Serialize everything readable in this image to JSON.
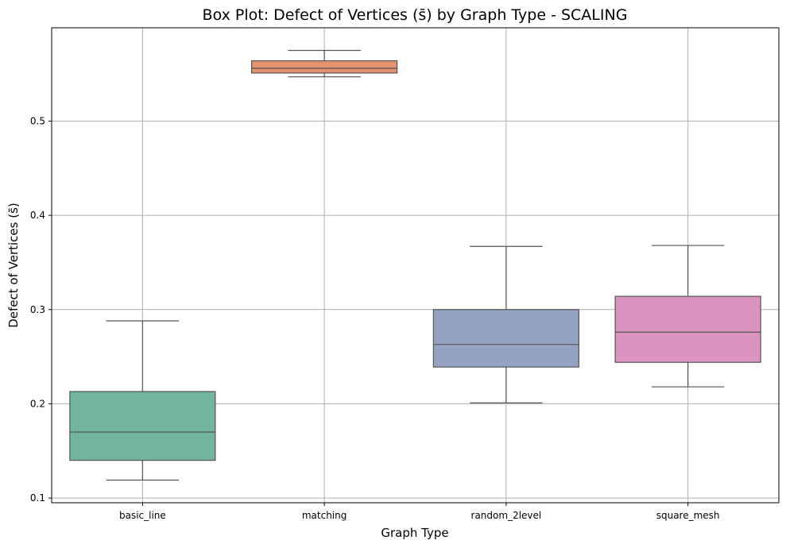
{
  "chart_data": {
    "type": "box",
    "title": "Box Plot: Defect of Vertices (s̄) by Graph Type - SCALING",
    "xlabel": "Graph Type",
    "ylabel": "Defect of Vertices (s̄)",
    "ylim": [
      0.095,
      0.599
    ],
    "yticks": [
      0.1,
      0.2,
      0.3,
      0.4,
      0.5
    ],
    "ytick_labels": [
      "0.1",
      "0.2",
      "0.3",
      "0.4",
      "0.5"
    ],
    "grid": true,
    "categories": [
      "basic_line",
      "matching",
      "random_2level",
      "square_mesh"
    ],
    "boxes": [
      {
        "category": "basic_line",
        "whisker_low": 0.119,
        "q1": 0.14,
        "median": 0.17,
        "q3": 0.213,
        "whisker_high": 0.288,
        "color": "#72b49f"
      },
      {
        "category": "matching",
        "whisker_low": 0.547,
        "q1": 0.551,
        "median": 0.556,
        "q3": 0.564,
        "whisker_high": 0.575,
        "color": "#e4926e"
      },
      {
        "category": "random_2level",
        "whisker_low": 0.201,
        "q1": 0.239,
        "median": 0.263,
        "q3": 0.3,
        "whisker_high": 0.367,
        "color": "#94a3c3"
      },
      {
        "category": "square_mesh",
        "whisker_low": 0.218,
        "q1": 0.244,
        "median": 0.276,
        "q3": 0.314,
        "whisker_high": 0.368,
        "color": "#da94bf"
      }
    ]
  }
}
